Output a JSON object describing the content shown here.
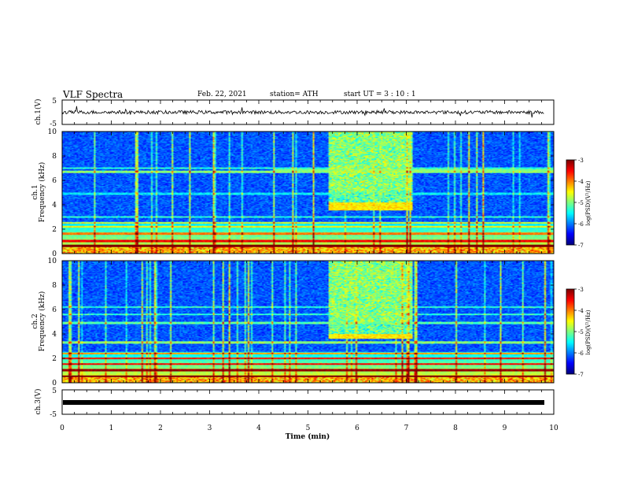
{
  "header": {
    "title": "VLF Spectra",
    "date": "Feb. 22, 2021",
    "station": "station= ATH",
    "start": "start  UT  =  3 : 10 : 1"
  },
  "chart_data": [
    {
      "type": "line",
      "name": "ch1-voltage",
      "ylabel": "ch.1(V)",
      "ylim": [
        -5,
        5
      ],
      "yticks": [
        "5",
        "-5"
      ],
      "xlim": [
        0,
        10
      ],
      "baseline": 0
    },
    {
      "type": "heatmap",
      "name": "ch1-spectrogram",
      "ylabel": "ch.1\nFrequency (kHz)",
      "ylim": [
        0,
        10
      ],
      "yticks": [
        "0",
        "2",
        "4",
        "6",
        "8",
        "10"
      ],
      "xlim": [
        0,
        10
      ],
      "emission_band": {
        "t_start": 5.3,
        "t_end": 7.0,
        "f_low": 3.5,
        "f_high": 4.2
      },
      "colorbar": {
        "label": "log(PSD)(V²/Hz)",
        "range": [
          -7,
          -3
        ],
        "ticks": [
          "-3",
          "-4",
          "-5",
          "-6",
          "-7"
        ]
      }
    },
    {
      "type": "heatmap",
      "name": "ch2-spectrogram",
      "ylabel": "ch.2\nFrequency (kHz)",
      "ylim": [
        0,
        10
      ],
      "yticks": [
        "0",
        "2",
        "4",
        "6",
        "8",
        "10"
      ],
      "xlim": [
        0,
        10
      ],
      "emission_band": {
        "t_start": 5.3,
        "t_end": 7.0,
        "f_low": 3.6,
        "f_high": 4.0
      },
      "colorbar": {
        "label": "log(PSD)(V²/Hz)",
        "range": [
          -7,
          -3
        ],
        "ticks": [
          "-3",
          "-4",
          "-5",
          "-6",
          "-7"
        ]
      }
    },
    {
      "type": "line",
      "name": "ch3-voltage",
      "ylabel": "ch.3(V)",
      "ylim": [
        -5,
        5
      ],
      "yticks": [
        "5",
        "-5"
      ],
      "xlim": [
        0,
        10
      ],
      "baseline": 0
    }
  ],
  "xaxis": {
    "label": "Time (min)",
    "ticks": [
      "0",
      "1",
      "2",
      "3",
      "4",
      "5",
      "6",
      "7",
      "8",
      "9",
      "10"
    ]
  },
  "colors": {
    "axis": "#000000",
    "trace": "#000000"
  }
}
